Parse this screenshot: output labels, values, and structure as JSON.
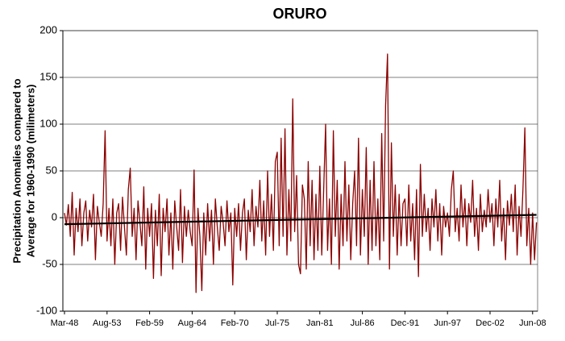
{
  "chart_data": {
    "type": "line",
    "title": "ORURO",
    "y_label": [
      "Precipitation Anomalies compared to",
      "Average for 1960-1990 (milimeters)"
    ],
    "categories": [
      "Mar-48",
      null,
      null,
      null,
      null,
      null,
      null,
      null,
      null,
      null,
      null,
      null,
      null,
      null,
      null,
      null,
      null,
      null,
      null,
      null,
      null,
      null,
      "Aug-53",
      null,
      null,
      null,
      null,
      null,
      null,
      null,
      null,
      null,
      null,
      null,
      null,
      null,
      null,
      null,
      null,
      null,
      null,
      null,
      null,
      null,
      "Feb-59",
      null,
      null,
      null,
      null,
      null,
      null,
      null,
      null,
      null,
      null,
      null,
      null,
      null,
      null,
      null,
      null,
      null,
      null,
      null,
      null,
      null,
      "Aug-64",
      null,
      null,
      null,
      null,
      null,
      null,
      null,
      null,
      null,
      null,
      null,
      null,
      null,
      null,
      null,
      null,
      null,
      null,
      null,
      null,
      null,
      "Feb-70",
      null,
      null,
      null,
      null,
      null,
      null,
      null,
      null,
      null,
      null,
      null,
      null,
      null,
      null,
      null,
      null,
      null,
      null,
      null,
      null,
      null,
      "Jul-75",
      null,
      null,
      null,
      null,
      null,
      null,
      null,
      null,
      null,
      null,
      null,
      null,
      null,
      null,
      null,
      null,
      null,
      null,
      null,
      null,
      null,
      "Jan-81",
      null,
      null,
      null,
      null,
      null,
      null,
      null,
      null,
      null,
      null,
      null,
      null,
      null,
      null,
      null,
      null,
      null,
      null,
      null,
      null,
      null,
      "Jul-86",
      null,
      null,
      null,
      null,
      null,
      null,
      null,
      null,
      null,
      null,
      null,
      null,
      null,
      null,
      null,
      null,
      null,
      null,
      null,
      null,
      null,
      "Dec-91",
      null,
      null,
      null,
      null,
      null,
      null,
      null,
      null,
      null,
      null,
      null,
      null,
      null,
      null,
      null,
      null,
      null,
      null,
      null,
      null,
      null,
      "Jun-97",
      null,
      null,
      null,
      null,
      null,
      null,
      null,
      null,
      null,
      null,
      null,
      null,
      null,
      null,
      null,
      null,
      null,
      null,
      null,
      null,
      null,
      "Dec-02",
      null,
      null,
      null,
      null,
      null,
      null,
      null,
      null,
      null,
      null,
      null,
      null,
      null,
      null,
      null,
      null,
      null,
      null,
      null,
      null,
      null,
      "Jun-08",
      null,
      null
    ],
    "series": [
      {
        "color": "#8b0000",
        "values": [
          5,
          -8,
          14,
          -20,
          27,
          -40,
          10,
          -15,
          20,
          -30,
          5,
          18,
          -25,
          8,
          -10,
          25,
          -45,
          12,
          -5,
          -20,
          15,
          93,
          -25,
          10,
          -30,
          20,
          -50,
          5,
          15,
          -35,
          22,
          -10,
          -40,
          30,
          53,
          -20,
          10,
          -45,
          18,
          -5,
          -30,
          33,
          -55,
          10,
          -20,
          15,
          -65,
          8,
          -30,
          25,
          -62,
          10,
          -15,
          20,
          -40,
          5,
          -55,
          18,
          -10,
          -35,
          30,
          -48,
          12,
          -20,
          8,
          -15,
          -30,
          51,
          -80,
          10,
          -20,
          -78,
          5,
          -40,
          15,
          -25,
          8,
          -50,
          20,
          -10,
          -35,
          12,
          -5,
          -30,
          18,
          -15,
          5,
          -72,
          10,
          -20,
          15,
          -35,
          5,
          20,
          -45,
          8,
          -15,
          30,
          -30,
          12,
          -10,
          40,
          -25,
          18,
          -40,
          50,
          -20,
          25,
          -35,
          60,
          70,
          -30,
          85,
          -20,
          95,
          -40,
          30,
          -25,
          127,
          -15,
          45,
          -50,
          -60,
          35,
          20,
          -55,
          60,
          -30,
          40,
          -45,
          25,
          -35,
          55,
          -40,
          30,
          100,
          -35,
          20,
          -50,
          93,
          -20,
          40,
          -55,
          25,
          -30,
          60,
          -25,
          35,
          -45,
          15,
          50,
          -30,
          85,
          -40,
          30,
          -20,
          75,
          -50,
          40,
          -35,
          60,
          -30,
          20,
          -45,
          90,
          -25,
          120,
          175,
          -55,
          80,
          -20,
          35,
          -40,
          25,
          -30,
          15,
          20,
          -30,
          35,
          -25,
          15,
          -45,
          30,
          -63,
          57,
          -20,
          25,
          -15,
          10,
          -35,
          20,
          -10,
          30,
          -25,
          15,
          -40,
          12,
          -10,
          5,
          -20,
          30,
          50,
          -15,
          10,
          -25,
          35,
          -10,
          20,
          -30,
          15,
          -5,
          40,
          -20,
          10,
          -35,
          25,
          -15,
          8,
          -10,
          30,
          -5,
          15,
          -30,
          20,
          -10,
          40,
          -25,
          10,
          -45,
          18,
          -8,
          25,
          -15,
          35,
          -40,
          12,
          -20,
          30,
          96,
          -30,
          10,
          -50,
          5,
          -45,
          -5
        ]
      }
    ],
    "trendline": {
      "color": "#000000",
      "values": [
        -7,
        3
      ]
    },
    "ylim": [
      -100,
      200
    ],
    "yticks": [
      -100,
      -50,
      0,
      50,
      100,
      150,
      200
    ],
    "grid": true
  }
}
